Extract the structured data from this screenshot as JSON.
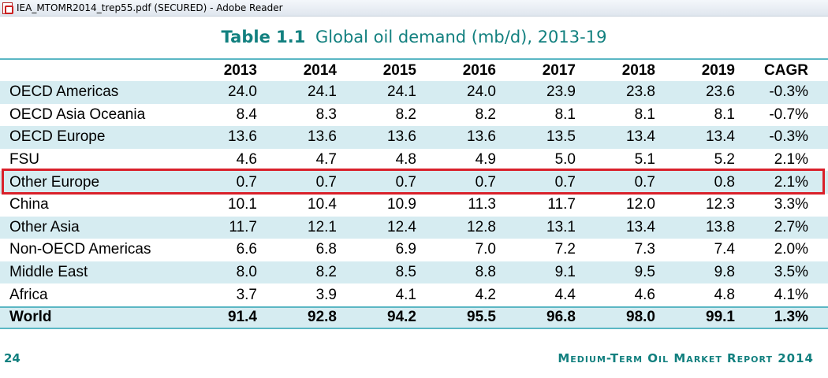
{
  "window": {
    "title": "IEA_MTOMR2014_trep55.pdf (SECURED) - Adobe Reader",
    "icon": "pdf-icon"
  },
  "table": {
    "number": "Table 1.1",
    "title": "Global oil demand (mb/d), 2013-19",
    "columns": [
      "2013",
      "2014",
      "2015",
      "2016",
      "2017",
      "2018",
      "2019",
      "CAGR"
    ],
    "rows": [
      {
        "label": "OECD Americas",
        "values": [
          "24.0",
          "24.1",
          "24.1",
          "24.0",
          "23.9",
          "23.8",
          "23.6",
          "-0.3%"
        ]
      },
      {
        "label": "OECD Asia Oceania",
        "values": [
          "8.4",
          "8.3",
          "8.2",
          "8.2",
          "8.1",
          "8.1",
          "8.1",
          "-0.7%"
        ]
      },
      {
        "label": "OECD Europe",
        "values": [
          "13.6",
          "13.6",
          "13.6",
          "13.6",
          "13.5",
          "13.4",
          "13.4",
          "-0.3%"
        ]
      },
      {
        "label": "FSU",
        "values": [
          "4.6",
          "4.7",
          "4.8",
          "4.9",
          "5.0",
          "5.1",
          "5.2",
          "2.1%"
        ]
      },
      {
        "label": "Other Europe",
        "values": [
          "0.7",
          "0.7",
          "0.7",
          "0.7",
          "0.7",
          "0.7",
          "0.8",
          "2.1%"
        ]
      },
      {
        "label": "China",
        "values": [
          "10.1",
          "10.4",
          "10.9",
          "11.3",
          "11.7",
          "12.0",
          "12.3",
          "3.3%"
        ]
      },
      {
        "label": "Other Asia",
        "values": [
          "11.7",
          "12.1",
          "12.4",
          "12.8",
          "13.1",
          "13.4",
          "13.8",
          "2.7%"
        ]
      },
      {
        "label": "Non-OECD Americas",
        "values": [
          "6.6",
          "6.8",
          "6.9",
          "7.0",
          "7.2",
          "7.3",
          "7.4",
          "2.0%"
        ]
      },
      {
        "label": "Middle East",
        "values": [
          "8.0",
          "8.2",
          "8.5",
          "8.8",
          "9.1",
          "9.5",
          "9.8",
          "3.5%"
        ]
      },
      {
        "label": "Africa",
        "values": [
          "3.7",
          "3.9",
          "4.1",
          "4.2",
          "4.4",
          "4.6",
          "4.8",
          "4.1%"
        ]
      }
    ],
    "total": {
      "label": "World",
      "values": [
        "91.4",
        "92.8",
        "94.2",
        "95.5",
        "96.8",
        "98.0",
        "99.1",
        "1.3%"
      ]
    }
  },
  "footer": {
    "page_number": "24",
    "report_name": "Medium-Term Oil Market Report 2014"
  },
  "colors": {
    "accent": "#12807f",
    "shade": "#d6ecf1",
    "rule": "#5bb7c4",
    "highlight": "#d9202a"
  }
}
